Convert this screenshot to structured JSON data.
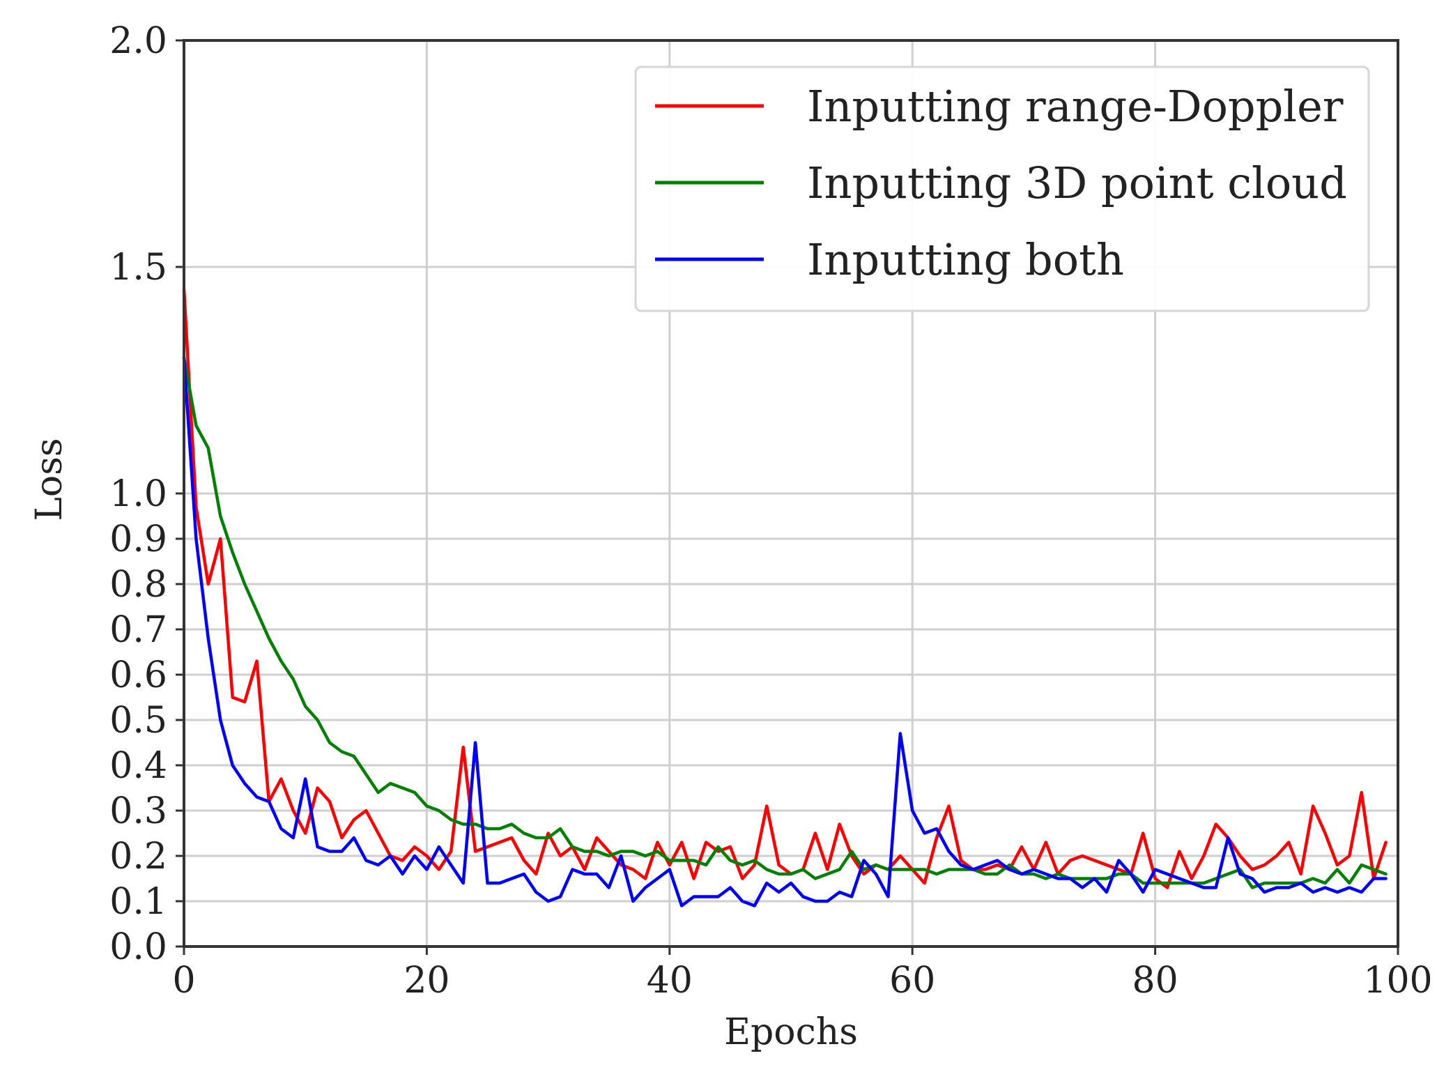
{
  "chart_data": {
    "type": "line",
    "title": "",
    "xlabel": "Epochs",
    "ylabel": "Loss",
    "xlim": [
      0,
      100
    ],
    "ylim": [
      0.0,
      2.0
    ],
    "grid": true,
    "legend_position": "top-right",
    "xticks": [
      {
        "value": 0,
        "label": "0"
      },
      {
        "value": 20,
        "label": "20"
      },
      {
        "value": 40,
        "label": "40"
      },
      {
        "value": 60,
        "label": "60"
      },
      {
        "value": 80,
        "label": "80"
      },
      {
        "value": 100,
        "label": "100"
      }
    ],
    "yticks": [
      {
        "value": 0.0,
        "label": "0.0"
      },
      {
        "value": 0.1,
        "label": "0.1"
      },
      {
        "value": 0.2,
        "label": "0.2"
      },
      {
        "value": 0.3,
        "label": "0.3"
      },
      {
        "value": 0.4,
        "label": "0.4"
      },
      {
        "value": 0.5,
        "label": "0.5"
      },
      {
        "value": 0.6,
        "label": "0.6"
      },
      {
        "value": 0.7,
        "label": "0.7"
      },
      {
        "value": 0.8,
        "label": "0.8"
      },
      {
        "value": 0.9,
        "label": "0.9"
      },
      {
        "value": 1.0,
        "label": "1.0"
      },
      {
        "value": 1.5,
        "label": "1.5"
      },
      {
        "value": 2.0,
        "label": "2.0"
      }
    ],
    "x": [
      0,
      1,
      2,
      3,
      4,
      5,
      6,
      7,
      8,
      9,
      10,
      11,
      12,
      13,
      14,
      15,
      16,
      17,
      18,
      19,
      20,
      21,
      22,
      23,
      24,
      25,
      26,
      27,
      28,
      29,
      30,
      31,
      32,
      33,
      34,
      35,
      36,
      37,
      38,
      39,
      40,
      41,
      42,
      43,
      44,
      45,
      46,
      47,
      48,
      49,
      50,
      51,
      52,
      53,
      54,
      55,
      56,
      57,
      58,
      59,
      60,
      61,
      62,
      63,
      64,
      65,
      66,
      67,
      68,
      69,
      70,
      71,
      72,
      73,
      74,
      75,
      76,
      77,
      78,
      79,
      80,
      81,
      82,
      83,
      84,
      85,
      86,
      87,
      88,
      89,
      90,
      91,
      92,
      93,
      94,
      95,
      96,
      97,
      98,
      99
    ],
    "series": [
      {
        "name": "Inputting range-Doppler",
        "color": "#ff0000",
        "values": [
          1.45,
          0.97,
          0.8,
          0.9,
          0.55,
          0.54,
          0.63,
          0.32,
          0.37,
          0.3,
          0.25,
          0.35,
          0.32,
          0.24,
          0.28,
          0.3,
          0.25,
          0.2,
          0.19,
          0.22,
          0.2,
          0.17,
          0.21,
          0.44,
          0.21,
          0.22,
          0.23,
          0.24,
          0.19,
          0.16,
          0.25,
          0.2,
          0.22,
          0.17,
          0.24,
          0.21,
          0.18,
          0.17,
          0.15,
          0.23,
          0.18,
          0.23,
          0.15,
          0.23,
          0.21,
          0.22,
          0.15,
          0.18,
          0.31,
          0.18,
          0.16,
          0.17,
          0.25,
          0.17,
          0.27,
          0.2,
          0.16,
          0.18,
          0.17,
          0.2,
          0.17,
          0.14,
          0.24,
          0.31,
          0.19,
          0.17,
          0.17,
          0.18,
          0.17,
          0.22,
          0.17,
          0.23,
          0.16,
          0.19,
          0.2,
          0.19,
          0.18,
          0.17,
          0.16,
          0.25,
          0.15,
          0.13,
          0.21,
          0.15,
          0.2,
          0.27,
          0.24,
          0.2,
          0.17,
          0.18,
          0.2,
          0.23,
          0.16,
          0.31,
          0.25,
          0.18,
          0.2,
          0.34,
          0.15,
          0.23
        ]
      },
      {
        "name": "Inputting 3D point cloud",
        "color": "#008000",
        "values": [
          1.3,
          1.15,
          1.1,
          0.95,
          0.87,
          0.8,
          0.74,
          0.68,
          0.63,
          0.59,
          0.53,
          0.5,
          0.45,
          0.43,
          0.42,
          0.38,
          0.34,
          0.36,
          0.35,
          0.34,
          0.31,
          0.3,
          0.28,
          0.27,
          0.27,
          0.26,
          0.26,
          0.27,
          0.25,
          0.24,
          0.24,
          0.26,
          0.22,
          0.21,
          0.21,
          0.2,
          0.21,
          0.21,
          0.2,
          0.21,
          0.19,
          0.19,
          0.19,
          0.18,
          0.22,
          0.19,
          0.18,
          0.19,
          0.17,
          0.16,
          0.16,
          0.17,
          0.15,
          0.16,
          0.17,
          0.21,
          0.17,
          0.18,
          0.17,
          0.17,
          0.17,
          0.17,
          0.16,
          0.17,
          0.17,
          0.17,
          0.16,
          0.16,
          0.18,
          0.16,
          0.16,
          0.15,
          0.16,
          0.15,
          0.15,
          0.15,
          0.15,
          0.16,
          0.16,
          0.14,
          0.14,
          0.14,
          0.14,
          0.14,
          0.14,
          0.15,
          0.16,
          0.17,
          0.13,
          0.14,
          0.14,
          0.14,
          0.14,
          0.15,
          0.14,
          0.17,
          0.14,
          0.18,
          0.17,
          0.16
        ]
      },
      {
        "name": "Inputting both",
        "color": "#0000ff",
        "values": [
          1.3,
          0.9,
          0.68,
          0.5,
          0.4,
          0.36,
          0.33,
          0.32,
          0.26,
          0.24,
          0.37,
          0.22,
          0.21,
          0.21,
          0.24,
          0.19,
          0.18,
          0.2,
          0.16,
          0.2,
          0.17,
          0.22,
          0.18,
          0.14,
          0.45,
          0.14,
          0.14,
          0.15,
          0.16,
          0.12,
          0.1,
          0.11,
          0.17,
          0.16,
          0.16,
          0.13,
          0.2,
          0.1,
          0.13,
          0.15,
          0.17,
          0.09,
          0.11,
          0.11,
          0.11,
          0.13,
          0.1,
          0.09,
          0.14,
          0.12,
          0.14,
          0.11,
          0.1,
          0.1,
          0.12,
          0.11,
          0.19,
          0.16,
          0.11,
          0.47,
          0.3,
          0.25,
          0.26,
          0.21,
          0.18,
          0.17,
          0.18,
          0.19,
          0.17,
          0.16,
          0.17,
          0.16,
          0.15,
          0.15,
          0.13,
          0.15,
          0.12,
          0.19,
          0.16,
          0.12,
          0.17,
          0.16,
          0.15,
          0.14,
          0.13,
          0.13,
          0.24,
          0.16,
          0.15,
          0.12,
          0.13,
          0.13,
          0.14,
          0.12,
          0.13,
          0.12,
          0.13,
          0.12,
          0.15,
          0.15
        ]
      }
    ]
  }
}
